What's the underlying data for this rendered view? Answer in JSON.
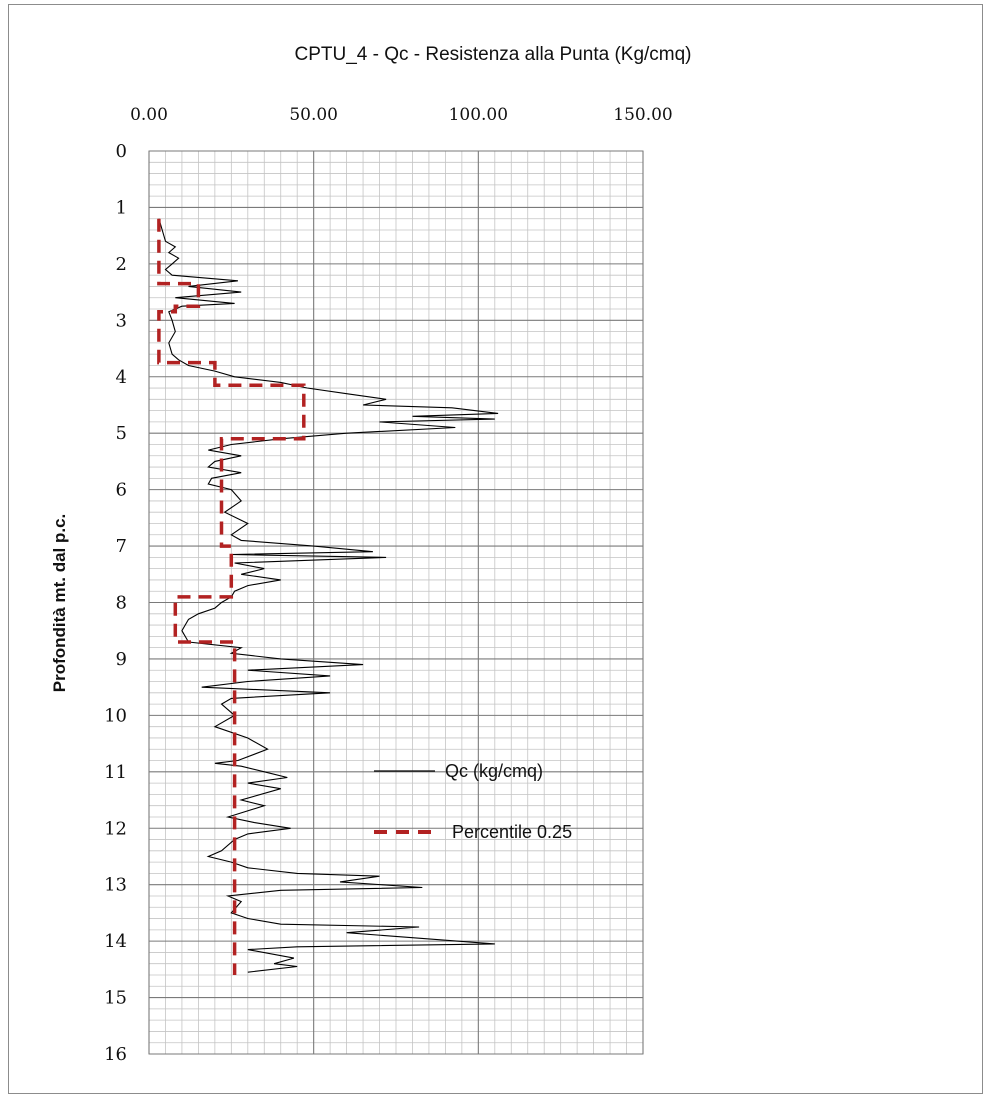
{
  "chart_data": {
    "type": "line",
    "title": "CPTU_4 - Qc - Resistenza alla Punta (Kg/cmq)",
    "xlabel": "",
    "ylabel": "Profondità mt. dal p.c.",
    "x_axis_position": "top",
    "y_inverted": true,
    "xlim": [
      0,
      150
    ],
    "ylim": [
      0,
      16
    ],
    "x_ticks": [
      "0.00",
      "50.00",
      "100.00",
      "150.00"
    ],
    "y_ticks": [
      "0",
      "1",
      "2",
      "3",
      "4",
      "5",
      "6",
      "7",
      "8",
      "9",
      "10",
      "11",
      "12",
      "13",
      "14",
      "15",
      "16"
    ],
    "grid": true,
    "legend_position": "right-center",
    "series": [
      {
        "name": "Qc (kg/cmq)",
        "color": "#000000",
        "style": "solid",
        "points": [
          [
            3,
            1.2
          ],
          [
            4,
            1.4
          ],
          [
            5,
            1.6
          ],
          [
            8,
            1.7
          ],
          [
            6,
            1.8
          ],
          [
            9,
            1.9
          ],
          [
            7,
            2.0
          ],
          [
            5,
            2.1
          ],
          [
            7,
            2.2
          ],
          [
            27,
            2.3
          ],
          [
            12,
            2.4
          ],
          [
            28,
            2.5
          ],
          [
            8,
            2.6
          ],
          [
            26,
            2.7
          ],
          [
            10,
            2.75
          ],
          [
            6,
            2.85
          ],
          [
            7,
            3.0
          ],
          [
            8,
            3.2
          ],
          [
            6,
            3.4
          ],
          [
            7,
            3.6
          ],
          [
            9,
            3.7
          ],
          [
            12,
            3.8
          ],
          [
            20,
            3.9
          ],
          [
            26,
            4.0
          ],
          [
            40,
            4.1
          ],
          [
            48,
            4.2
          ],
          [
            60,
            4.3
          ],
          [
            72,
            4.4
          ],
          [
            65,
            4.5
          ],
          [
            92,
            4.55
          ],
          [
            106,
            4.65
          ],
          [
            80,
            4.7
          ],
          [
            105,
            4.75
          ],
          [
            70,
            4.8
          ],
          [
            93,
            4.9
          ],
          [
            60,
            5.0
          ],
          [
            40,
            5.1
          ],
          [
            25,
            5.2
          ],
          [
            18,
            5.3
          ],
          [
            28,
            5.4
          ],
          [
            20,
            5.5
          ],
          [
            18,
            5.6
          ],
          [
            28,
            5.7
          ],
          [
            19,
            5.8
          ],
          [
            18,
            5.9
          ],
          [
            25,
            6.0
          ],
          [
            28,
            6.2
          ],
          [
            23,
            6.4
          ],
          [
            30,
            6.6
          ],
          [
            25,
            6.8
          ],
          [
            28,
            6.9
          ],
          [
            50,
            7.0
          ],
          [
            68,
            7.1
          ],
          [
            25,
            7.15
          ],
          [
            72,
            7.2
          ],
          [
            26,
            7.3
          ],
          [
            35,
            7.4
          ],
          [
            28,
            7.5
          ],
          [
            40,
            7.6
          ],
          [
            30,
            7.7
          ],
          [
            26,
            7.8
          ],
          [
            25,
            7.9
          ],
          [
            22,
            8.0
          ],
          [
            20,
            8.1
          ],
          [
            15,
            8.2
          ],
          [
            12,
            8.3
          ],
          [
            10,
            8.5
          ],
          [
            12,
            8.7
          ],
          [
            28,
            8.8
          ],
          [
            25,
            8.9
          ],
          [
            40,
            9.0
          ],
          [
            65,
            9.1
          ],
          [
            30,
            9.2
          ],
          [
            55,
            9.3
          ],
          [
            30,
            9.4
          ],
          [
            16,
            9.5
          ],
          [
            55,
            9.6
          ],
          [
            25,
            9.7
          ],
          [
            22,
            9.8
          ],
          [
            26,
            10.0
          ],
          [
            20,
            10.2
          ],
          [
            30,
            10.4
          ],
          [
            36,
            10.6
          ],
          [
            27,
            10.8
          ],
          [
            20,
            10.85
          ],
          [
            28,
            10.9
          ],
          [
            35,
            11.0
          ],
          [
            42,
            11.1
          ],
          [
            30,
            11.2
          ],
          [
            40,
            11.3
          ],
          [
            28,
            11.5
          ],
          [
            35,
            11.6
          ],
          [
            24,
            11.8
          ],
          [
            32,
            11.9
          ],
          [
            43,
            12.0
          ],
          [
            30,
            12.1
          ],
          [
            26,
            12.2
          ],
          [
            22,
            12.4
          ],
          [
            18,
            12.5
          ],
          [
            25,
            12.6
          ],
          [
            30,
            12.7
          ],
          [
            45,
            12.8
          ],
          [
            70,
            12.85
          ],
          [
            58,
            12.95
          ],
          [
            83,
            13.05
          ],
          [
            40,
            13.1
          ],
          [
            24,
            13.2
          ],
          [
            28,
            13.3
          ],
          [
            25,
            13.5
          ],
          [
            30,
            13.6
          ],
          [
            40,
            13.7
          ],
          [
            82,
            13.75
          ],
          [
            60,
            13.85
          ],
          [
            105,
            14.05
          ],
          [
            45,
            14.1
          ],
          [
            30,
            14.15
          ],
          [
            44,
            14.3
          ],
          [
            38,
            14.4
          ],
          [
            45,
            14.45
          ],
          [
            30,
            14.55
          ]
        ]
      },
      {
        "name": "Percentile 0.25",
        "color": "#b22222",
        "style": "dashed",
        "points": [
          [
            3,
            1.2
          ],
          [
            3,
            2.1
          ],
          [
            3,
            2.35
          ],
          [
            15,
            2.35
          ],
          [
            15,
            2.75
          ],
          [
            8,
            2.75
          ],
          [
            8,
            2.85
          ],
          [
            3,
            2.85
          ],
          [
            3,
            3.75
          ],
          [
            20,
            3.75
          ],
          [
            20,
            4.15
          ],
          [
            47,
            4.15
          ],
          [
            47,
            5.1
          ],
          [
            22,
            5.1
          ],
          [
            22,
            7.0
          ],
          [
            25,
            7.0
          ],
          [
            25,
            7.9
          ],
          [
            8,
            7.9
          ],
          [
            8,
            8.7
          ],
          [
            26,
            8.7
          ],
          [
            26,
            14.6
          ]
        ]
      }
    ]
  }
}
